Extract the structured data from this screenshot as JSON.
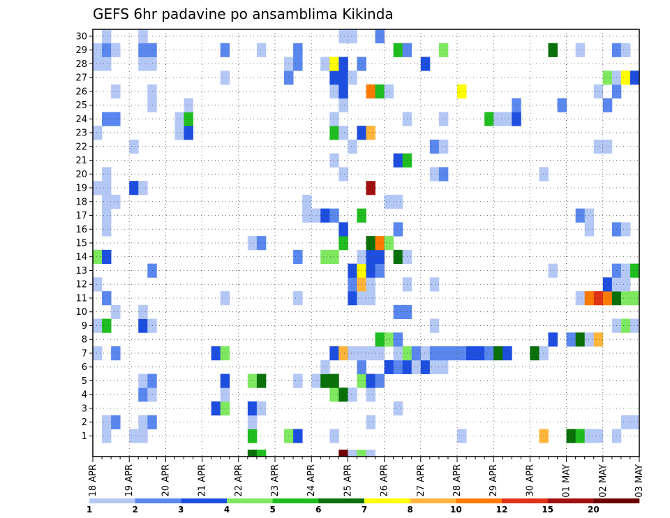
{
  "chart_data": {
    "type": "heatmap",
    "title": "GEFS 6hr padavine po ansamblima Kikinda",
    "xlabel": "",
    "ylabel": "",
    "x_tick_labels": [
      "18 APR",
      "19 APR",
      "20 APR",
      "21 APR",
      "22 APR",
      "23 APR",
      "24 APR",
      "25 APR",
      "26 APR",
      "27 APR",
      "28 APR",
      "29 APR",
      "30 APR",
      "01 MAY",
      "02 MAY",
      "03 MAY"
    ],
    "x_steps_per_day": 4,
    "x_steps_total": 60,
    "y_members": [
      1,
      2,
      3,
      4,
      5,
      6,
      7,
      8,
      9,
      10,
      11,
      12,
      13,
      14,
      15,
      16,
      17,
      18,
      19,
      20,
      21,
      22,
      23,
      24,
      25,
      26,
      27,
      28,
      29,
      30
    ],
    "y_extra_row_below_1": true,
    "grid": true,
    "colorbar": {
      "levels": [
        "1",
        "2",
        "3",
        "4",
        "5",
        "6",
        "7",
        "8",
        "10",
        "12",
        "15",
        "20"
      ],
      "colors": [
        "#b4c8f6",
        "#5a87ee",
        "#1e4ee0",
        "#7ee860",
        "#1fbd1f",
        "#0a700a",
        "#ffff00",
        "#ffb43c",
        "#ff7a00",
        "#e03214",
        "#a01010",
        "#6e0000"
      ]
    },
    "cells": [
      [
        1,
        1,
        1
      ],
      [
        4,
        1,
        1
      ],
      [
        5,
        1,
        1
      ],
      [
        17,
        1,
        5
      ],
      [
        21,
        1,
        4
      ],
      [
        22,
        1,
        3
      ],
      [
        26,
        1,
        1
      ],
      [
        40,
        1,
        1
      ],
      [
        49,
        1,
        8
      ],
      [
        52,
        1,
        6
      ],
      [
        53,
        1,
        5
      ],
      [
        54,
        1,
        1
      ],
      [
        55,
        1,
        1
      ],
      [
        57,
        1,
        1
      ],
      [
        1,
        2,
        1
      ],
      [
        2,
        2,
        2
      ],
      [
        5,
        2,
        1
      ],
      [
        6,
        2,
        2
      ],
      [
        17,
        2,
        1
      ],
      [
        30,
        2,
        1
      ],
      [
        58,
        2,
        1
      ],
      [
        59,
        2,
        1
      ],
      [
        13,
        3,
        3
      ],
      [
        14,
        3,
        4
      ],
      [
        17,
        3,
        3
      ],
      [
        18,
        3,
        1
      ],
      [
        33,
        3,
        1
      ],
      [
        5,
        4,
        2
      ],
      [
        6,
        4,
        1
      ],
      [
        14,
        4,
        1
      ],
      [
        26,
        4,
        4
      ],
      [
        27,
        4,
        6
      ],
      [
        28,
        4,
        1
      ],
      [
        30,
        4,
        1
      ],
      [
        5,
        5,
        1
      ],
      [
        6,
        5,
        2
      ],
      [
        14,
        5,
        3
      ],
      [
        17,
        5,
        4
      ],
      [
        18,
        5,
        6
      ],
      [
        22,
        5,
        1
      ],
      [
        24,
        5,
        1
      ],
      [
        25,
        5,
        6
      ],
      [
        26,
        5,
        6
      ],
      [
        29,
        5,
        4
      ],
      [
        30,
        5,
        3
      ],
      [
        31,
        5,
        2
      ],
      [
        25,
        6,
        1
      ],
      [
        29,
        6,
        2
      ],
      [
        32,
        6,
        3
      ],
      [
        33,
        6,
        2
      ],
      [
        34,
        6,
        3
      ],
      [
        35,
        6,
        1
      ],
      [
        36,
        6,
        3
      ],
      [
        37,
        6,
        1
      ],
      [
        38,
        6,
        1
      ],
      [
        0,
        7,
        1
      ],
      [
        2,
        7,
        2
      ],
      [
        13,
        7,
        3
      ],
      [
        14,
        7,
        4
      ],
      [
        26,
        7,
        3
      ],
      [
        27,
        7,
        8
      ],
      [
        28,
        7,
        1
      ],
      [
        29,
        7,
        1
      ],
      [
        30,
        7,
        1
      ],
      [
        31,
        7,
        1
      ],
      [
        33,
        7,
        1
      ],
      [
        34,
        7,
        4
      ],
      [
        35,
        7,
        2
      ],
      [
        36,
        7,
        1
      ],
      [
        37,
        7,
        2
      ],
      [
        38,
        7,
        2
      ],
      [
        39,
        7,
        2
      ],
      [
        40,
        7,
        2
      ],
      [
        41,
        7,
        3
      ],
      [
        42,
        7,
        3
      ],
      [
        43,
        7,
        2
      ],
      [
        44,
        7,
        6
      ],
      [
        45,
        7,
        3
      ],
      [
        48,
        7,
        6
      ],
      [
        49,
        7,
        1
      ],
      [
        31,
        8,
        5
      ],
      [
        32,
        8,
        4
      ],
      [
        33,
        8,
        2
      ],
      [
        50,
        8,
        3
      ],
      [
        52,
        8,
        2
      ],
      [
        53,
        8,
        6
      ],
      [
        54,
        8,
        1
      ],
      [
        55,
        8,
        8
      ],
      [
        0,
        9,
        1
      ],
      [
        1,
        9,
        5
      ],
      [
        5,
        9,
        3
      ],
      [
        6,
        9,
        1
      ],
      [
        37,
        9,
        1
      ],
      [
        57,
        9,
        1
      ],
      [
        58,
        9,
        4
      ],
      [
        59,
        9,
        1
      ],
      [
        2,
        10,
        1
      ],
      [
        5,
        10,
        1
      ],
      [
        33,
        10,
        2
      ],
      [
        34,
        10,
        2
      ],
      [
        1,
        11,
        2
      ],
      [
        14,
        11,
        1
      ],
      [
        22,
        11,
        1
      ],
      [
        28,
        11,
        3
      ],
      [
        29,
        11,
        1
      ],
      [
        30,
        11,
        1
      ],
      [
        53,
        11,
        1
      ],
      [
        54,
        11,
        9
      ],
      [
        55,
        11,
        10
      ],
      [
        56,
        11,
        9
      ],
      [
        57,
        11,
        6
      ],
      [
        58,
        11,
        4
      ],
      [
        59,
        11,
        4
      ],
      [
        0,
        12,
        1
      ],
      [
        28,
        12,
        2
      ],
      [
        29,
        12,
        8
      ],
      [
        30,
        12,
        1
      ],
      [
        34,
        12,
        1
      ],
      [
        37,
        12,
        1
      ],
      [
        56,
        12,
        3
      ],
      [
        57,
        12,
        1
      ],
      [
        58,
        12,
        1
      ],
      [
        6,
        13,
        2
      ],
      [
        28,
        13,
        3
      ],
      [
        29,
        13,
        7
      ],
      [
        30,
        13,
        3
      ],
      [
        31,
        13,
        2
      ],
      [
        50,
        13,
        1
      ],
      [
        57,
        13,
        2
      ],
      [
        58,
        13,
        1
      ],
      [
        59,
        13,
        5
      ],
      [
        0,
        14,
        4
      ],
      [
        1,
        14,
        3
      ],
      [
        22,
        14,
        2
      ],
      [
        25,
        14,
        4
      ],
      [
        26,
        14,
        4
      ],
      [
        29,
        14,
        1
      ],
      [
        30,
        14,
        3
      ],
      [
        31,
        14,
        3
      ],
      [
        33,
        14,
        6
      ],
      [
        34,
        14,
        1
      ],
      [
        17,
        15,
        1
      ],
      [
        18,
        15,
        2
      ],
      [
        27,
        15,
        5
      ],
      [
        30,
        15,
        6
      ],
      [
        31,
        15,
        9
      ],
      [
        32,
        15,
        4
      ],
      [
        1,
        16,
        1
      ],
      [
        27,
        16,
        3
      ],
      [
        33,
        16,
        2
      ],
      [
        54,
        16,
        1
      ],
      [
        57,
        16,
        2
      ],
      [
        58,
        16,
        1
      ],
      [
        1,
        17,
        1
      ],
      [
        23,
        17,
        1
      ],
      [
        24,
        17,
        1
      ],
      [
        25,
        17,
        3
      ],
      [
        26,
        17,
        2
      ],
      [
        29,
        17,
        5
      ],
      [
        53,
        17,
        2
      ],
      [
        54,
        17,
        1
      ],
      [
        1,
        18,
        1
      ],
      [
        2,
        18,
        1
      ],
      [
        23,
        18,
        1
      ],
      [
        32,
        18,
        1
      ],
      [
        33,
        18,
        1
      ],
      [
        0,
        19,
        1
      ],
      [
        1,
        19,
        1
      ],
      [
        4,
        19,
        3
      ],
      [
        5,
        19,
        1
      ],
      [
        30,
        19,
        11
      ],
      [
        1,
        20,
        1
      ],
      [
        27,
        20,
        1
      ],
      [
        37,
        20,
        1
      ],
      [
        38,
        20,
        2
      ],
      [
        49,
        20,
        1
      ],
      [
        26,
        21,
        1
      ],
      [
        33,
        21,
        3
      ],
      [
        34,
        21,
        5
      ],
      [
        4,
        22,
        1
      ],
      [
        28,
        22,
        1
      ],
      [
        37,
        22,
        2
      ],
      [
        38,
        22,
        1
      ],
      [
        55,
        22,
        1
      ],
      [
        56,
        22,
        1
      ],
      [
        0,
        23,
        1
      ],
      [
        9,
        23,
        1
      ],
      [
        10,
        23,
        3
      ],
      [
        26,
        23,
        5
      ],
      [
        27,
        23,
        1
      ],
      [
        29,
        23,
        3
      ],
      [
        30,
        23,
        8
      ],
      [
        1,
        24,
        2
      ],
      [
        2,
        24,
        2
      ],
      [
        9,
        24,
        1
      ],
      [
        10,
        24,
        5
      ],
      [
        26,
        24,
        1
      ],
      [
        34,
        24,
        1
      ],
      [
        38,
        24,
        1
      ],
      [
        43,
        24,
        5
      ],
      [
        44,
        24,
        1
      ],
      [
        45,
        24,
        1
      ],
      [
        46,
        24,
        3
      ],
      [
        6,
        25,
        1
      ],
      [
        10,
        25,
        1
      ],
      [
        27,
        25,
        1
      ],
      [
        46,
        25,
        2
      ],
      [
        51,
        25,
        2
      ],
      [
        56,
        25,
        2
      ],
      [
        2,
        26,
        1
      ],
      [
        6,
        26,
        1
      ],
      [
        26,
        26,
        1
      ],
      [
        27,
        26,
        3
      ],
      [
        30,
        26,
        9
      ],
      [
        31,
        26,
        5
      ],
      [
        32,
        26,
        1
      ],
      [
        40,
        26,
        7
      ],
      [
        55,
        26,
        1
      ],
      [
        57,
        26,
        2
      ],
      [
        14,
        27,
        1
      ],
      [
        21,
        27,
        2
      ],
      [
        26,
        27,
        3
      ],
      [
        27,
        27,
        3
      ],
      [
        28,
        27,
        1
      ],
      [
        56,
        27,
        4
      ],
      [
        57,
        27,
        1
      ],
      [
        58,
        27,
        7
      ],
      [
        59,
        27,
        3
      ],
      [
        0,
        28,
        1
      ],
      [
        1,
        28,
        1
      ],
      [
        5,
        28,
        1
      ],
      [
        6,
        28,
        1
      ],
      [
        21,
        28,
        1
      ],
      [
        22,
        28,
        2
      ],
      [
        25,
        28,
        1
      ],
      [
        26,
        28,
        7
      ],
      [
        27,
        28,
        3
      ],
      [
        29,
        28,
        2
      ],
      [
        36,
        28,
        3
      ],
      [
        0,
        29,
        1
      ],
      [
        1,
        29,
        2
      ],
      [
        2,
        29,
        1
      ],
      [
        5,
        29,
        2
      ],
      [
        6,
        29,
        2
      ],
      [
        14,
        29,
        2
      ],
      [
        18,
        29,
        1
      ],
      [
        22,
        29,
        2
      ],
      [
        33,
        29,
        5
      ],
      [
        34,
        29,
        2
      ],
      [
        38,
        29,
        4
      ],
      [
        50,
        29,
        6
      ],
      [
        53,
        29,
        1
      ],
      [
        57,
        29,
        2
      ],
      [
        58,
        29,
        1
      ],
      [
        1,
        30,
        1
      ],
      [
        5,
        30,
        1
      ],
      [
        27,
        30,
        1
      ],
      [
        28,
        30,
        1
      ],
      [
        31,
        30,
        2
      ]
    ],
    "bottom_row_cells": [
      [
        17,
        6
      ],
      [
        18,
        5
      ],
      [
        27,
        12
      ],
      [
        28,
        1
      ],
      [
        29,
        4
      ],
      [
        30,
        1
      ]
    ]
  }
}
